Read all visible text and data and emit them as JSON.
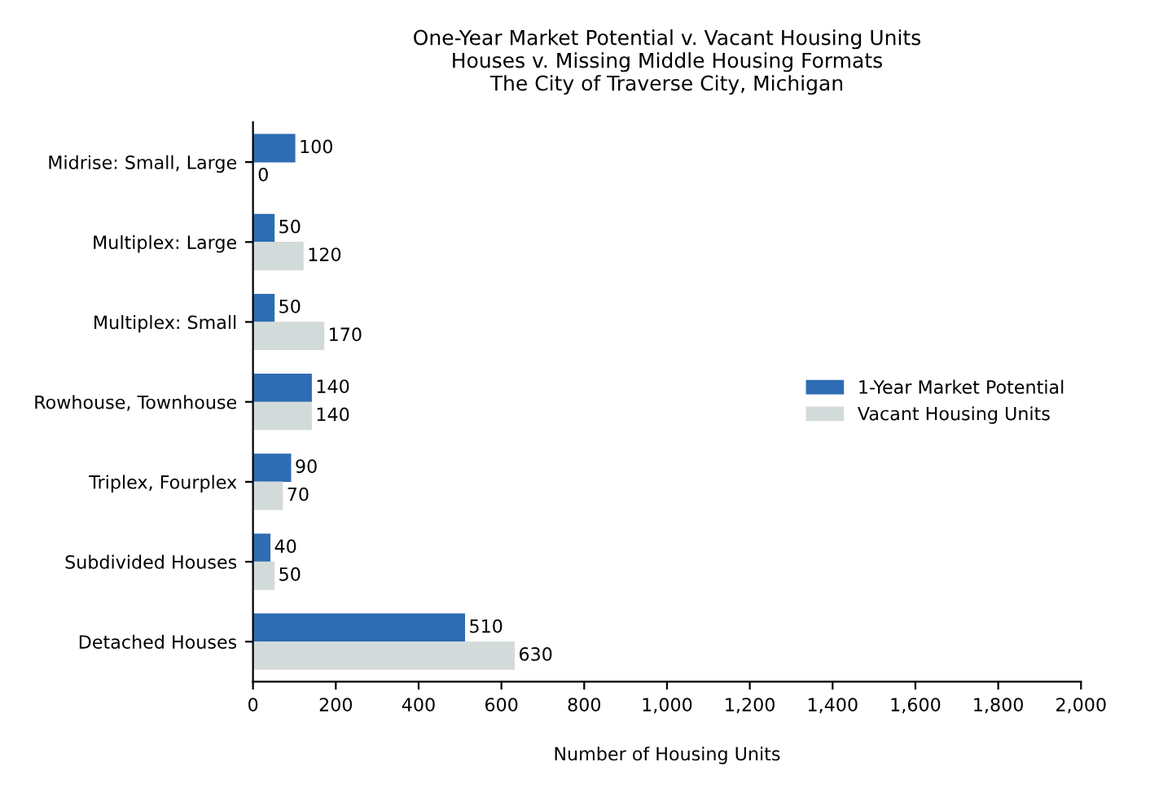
{
  "chart_data": {
    "type": "bar",
    "orientation": "horizontal",
    "title": "One-Year Market Potential v. Vacant Housing Units\nHouses v. Missing Middle Housing Formats\nThe City of Traverse City, Michigan",
    "xlabel": "Number of Housing Units",
    "categories": [
      "Midrise: Small, Large",
      "Multiplex: Large",
      "Multiplex: Small",
      "Rowhouse, Townhouse",
      "Triplex, Fourplex",
      "Subdivided Houses",
      "Detached Houses"
    ],
    "series": [
      {
        "name": "1-Year Market Potential",
        "color": "#2e6db4",
        "values": [
          100,
          50,
          50,
          140,
          90,
          40,
          510
        ]
      },
      {
        "name": "Vacant Housing Units",
        "color": "#d3dbda",
        "values": [
          0,
          120,
          170,
          140,
          70,
          50,
          630
        ]
      }
    ],
    "xlim": [
      0,
      2000
    ],
    "xticks": [
      0,
      200,
      400,
      600,
      800,
      {
        "value": 1000,
        "label": "1,000"
      },
      {
        "value": 1200,
        "label": "1,200"
      },
      {
        "value": 1400,
        "label": "1,400"
      },
      {
        "value": 1600,
        "label": "1,600"
      },
      {
        "value": 1800,
        "label": "1,800"
      },
      {
        "value": 2000,
        "label": "2,000"
      }
    ],
    "data_labels": true,
    "legend": "right",
    "grid": false
  }
}
